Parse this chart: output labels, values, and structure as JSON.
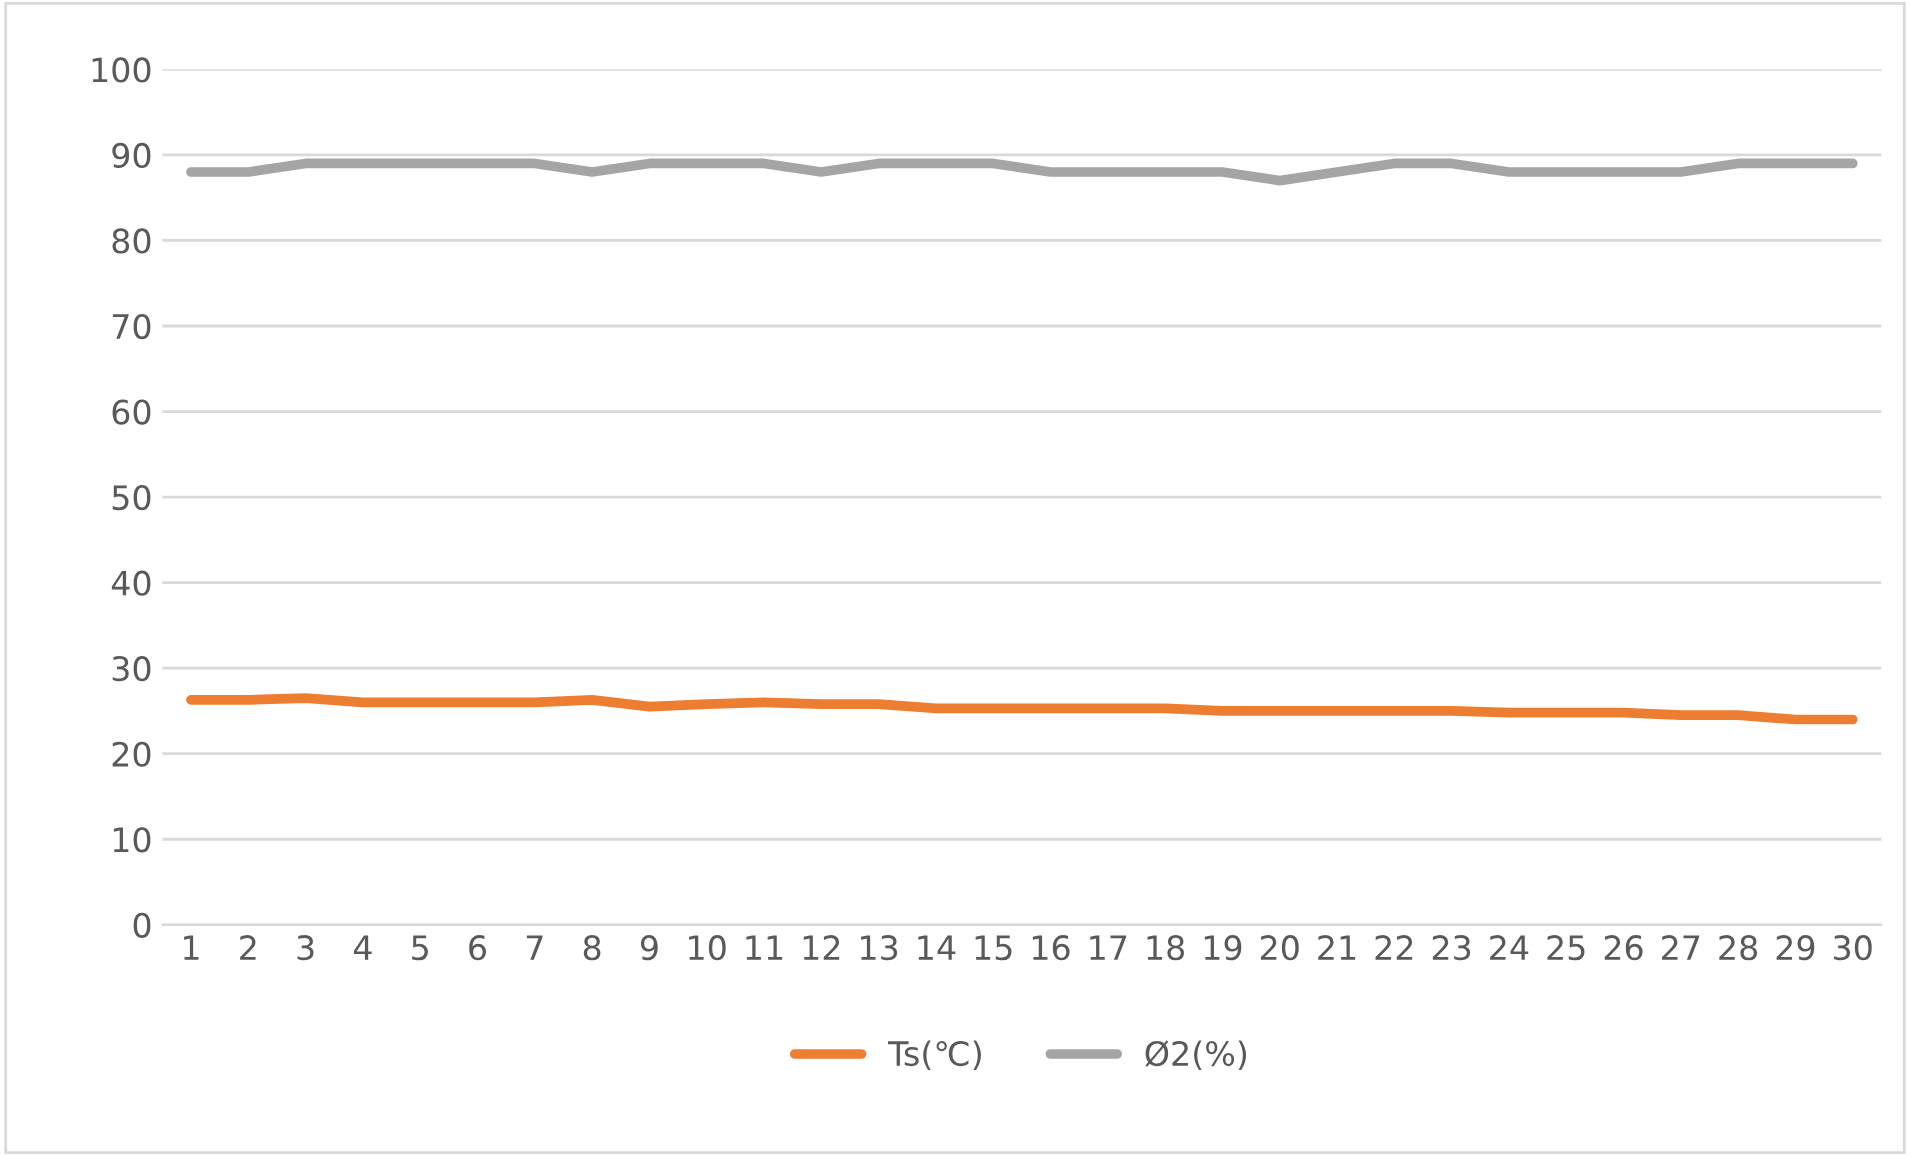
{
  "chart_data": {
    "type": "line",
    "categories": [
      "1",
      "2",
      "3",
      "4",
      "5",
      "6",
      "7",
      "8",
      "9",
      "10",
      "11",
      "12",
      "13",
      "14",
      "15",
      "16",
      "17",
      "18",
      "19",
      "20",
      "21",
      "22",
      "23",
      "24",
      "25",
      "26",
      "27",
      "28",
      "29",
      "30"
    ],
    "series": [
      {
        "name": "Ts(℃)",
        "color": "#ed7d31",
        "values": [
          26.3,
          26.3,
          26.5,
          26.0,
          26.0,
          26.0,
          26.0,
          26.3,
          25.5,
          25.8,
          26.0,
          25.8,
          25.8,
          25.3,
          25.3,
          25.3,
          25.3,
          25.3,
          25.0,
          25.0,
          25.0,
          25.0,
          25.0,
          24.8,
          24.8,
          24.8,
          24.5,
          24.5,
          24.0,
          24.0
        ]
      },
      {
        "name": "Ø2(%)",
        "color": "#a5a5a5",
        "values": [
          88,
          88,
          89,
          89,
          89,
          89,
          89,
          88,
          89,
          89,
          89,
          88,
          89,
          89,
          89,
          88,
          88,
          88,
          88,
          87,
          88,
          89,
          89,
          88,
          88,
          88,
          88,
          89,
          89,
          89
        ]
      }
    ],
    "ylim": [
      0,
      100
    ],
    "yticks": [
      0,
      10,
      20,
      30,
      40,
      50,
      60,
      70,
      80,
      90,
      100
    ],
    "grid": "y",
    "legend": "bottom",
    "marker": "none",
    "line_style": "solid"
  }
}
